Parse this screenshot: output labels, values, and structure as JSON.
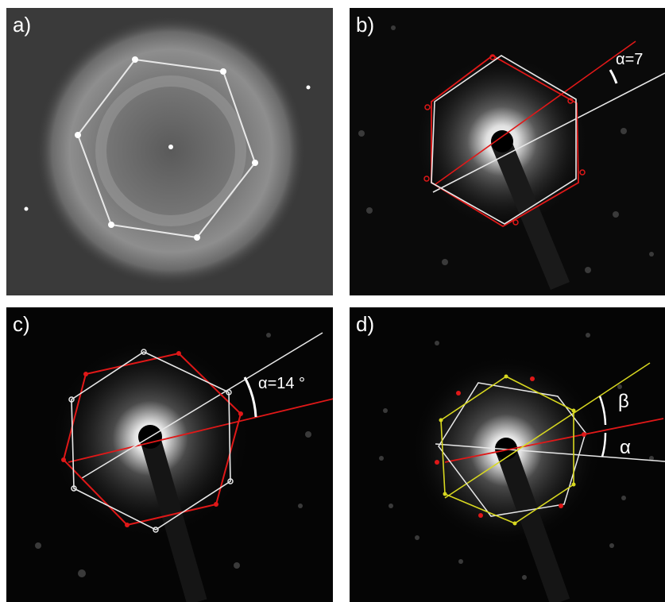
{
  "panels": {
    "a": {
      "label": "a)"
    },
    "b": {
      "label": "b)",
      "angle_text": "α=7"
    },
    "c": {
      "label": "c)",
      "angle_text": "α=14 °"
    },
    "d": {
      "label": "d)",
      "beta_text": "β",
      "alpha_text": "α"
    }
  },
  "colors": {
    "hexagon_white": "#e8e8e8",
    "hexagon_red": "#e01818",
    "hexagon_yellow": "#d8d820",
    "background_dark": "#050505",
    "background_fft": "#3a3a3a"
  }
}
